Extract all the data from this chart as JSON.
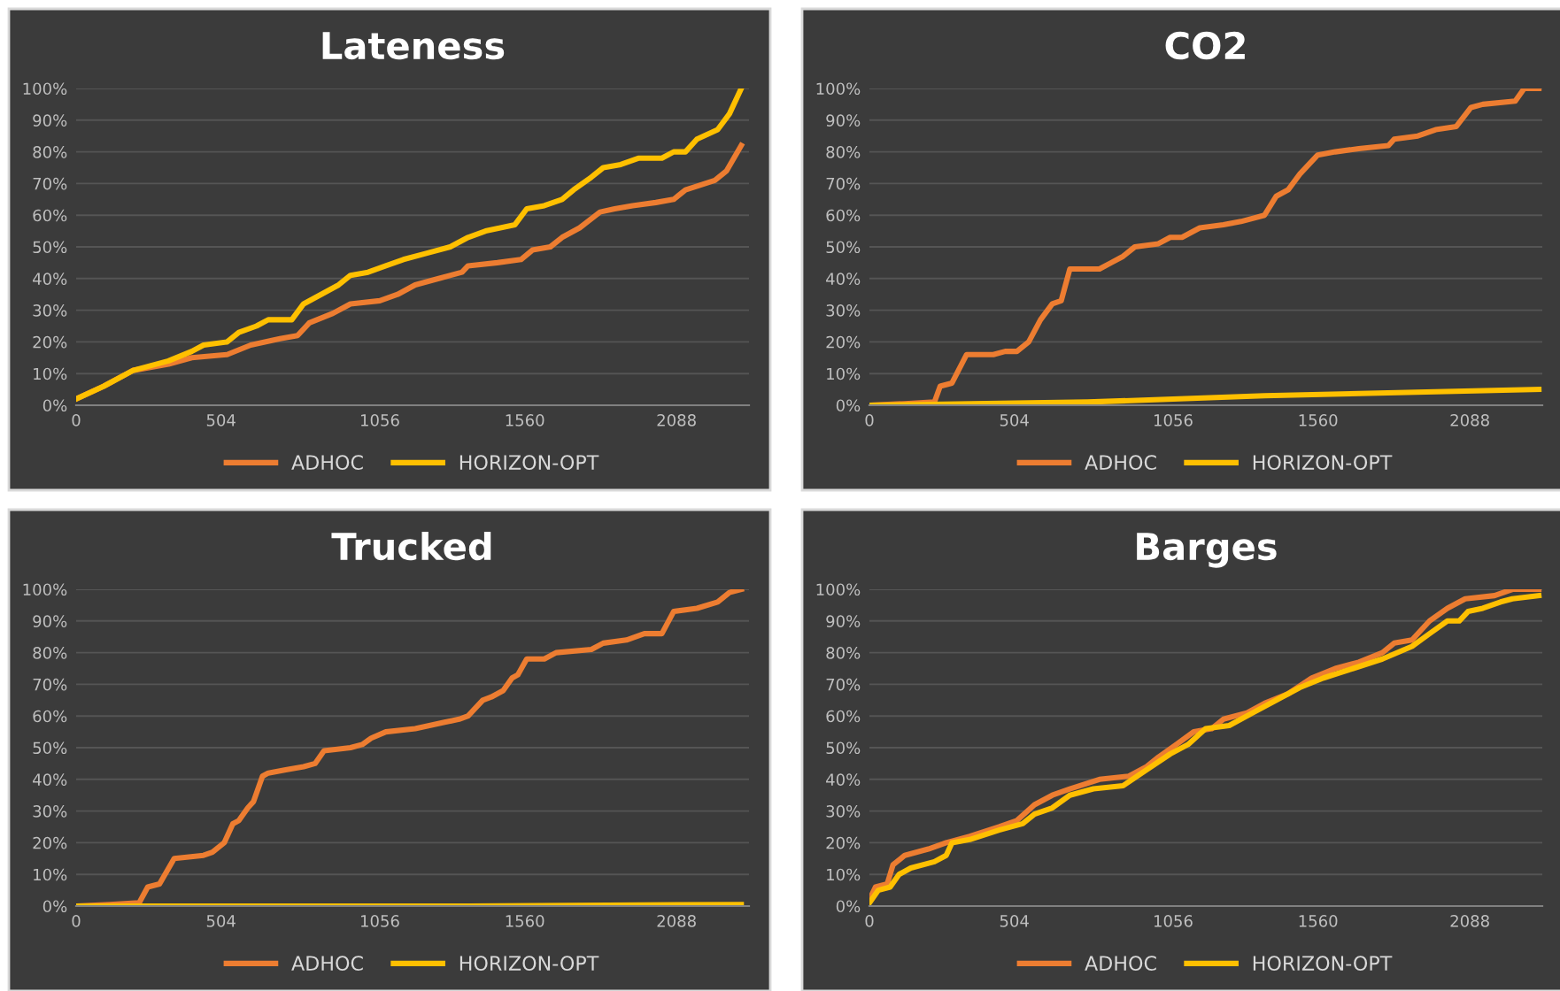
{
  "chart_data": [
    {
      "type": "line",
      "title": "Lateness",
      "xlim": [
        0,
        2340
      ],
      "ylim": [
        0,
        100
      ],
      "grid": "y",
      "legend": "bottom",
      "xticks": [
        0,
        504,
        1056,
        1560,
        2088
      ],
      "yticks": [
        {
          "value": 0,
          "label": "0%"
        },
        {
          "value": 10,
          "label": "10%"
        },
        {
          "value": 20,
          "label": "20%"
        },
        {
          "value": 30,
          "label": "30%"
        },
        {
          "value": 40,
          "label": "40%"
        },
        {
          "value": 50,
          "label": "50%"
        },
        {
          "value": 60,
          "label": "60%"
        },
        {
          "value": 70,
          "label": "70%"
        },
        {
          "value": 80,
          "label": "80%"
        },
        {
          "value": 90,
          "label": "90%"
        },
        {
          "value": 100,
          "label": "100%"
        }
      ],
      "series": [
        {
          "name": "ADHOC",
          "color": "#ed7d31",
          "x": [
            0,
            96,
            198,
            321,
            402,
            525,
            607,
            709,
            770,
            811,
            893,
            954,
            1056,
            1118,
            1179,
            1261,
            1342,
            1363,
            1465,
            1547,
            1587,
            1649,
            1690,
            1751,
            1822,
            1873,
            1935,
            2016,
            2078,
            2119,
            2221,
            2262,
            2313
          ],
          "values": [
            2,
            6,
            11,
            13,
            15,
            16,
            19,
            21,
            22,
            26,
            29,
            32,
            33,
            35,
            38,
            40,
            42,
            44,
            45,
            46,
            49,
            50,
            53,
            56,
            61,
            62,
            63,
            64,
            65,
            68,
            71,
            74,
            82
          ]
        },
        {
          "name": "HORIZON-OPT",
          "color": "#ffc000",
          "x": [
            0,
            96,
            198,
            321,
            402,
            443,
            525,
            566,
            627,
            668,
            750,
            791,
            852,
            913,
            954,
            1015,
            1077,
            1138,
            1220,
            1301,
            1363,
            1424,
            1526,
            1567,
            1628,
            1690,
            1730,
            1792,
            1833,
            1894,
            1955,
            2037,
            2078,
            2119,
            2159,
            2231,
            2272,
            2313
          ],
          "values": [
            2,
            6,
            11,
            14,
            17,
            19,
            20,
            23,
            25,
            27,
            27,
            32,
            35,
            38,
            41,
            42,
            44,
            46,
            48,
            50,
            53,
            55,
            57,
            62,
            63,
            65,
            68,
            72,
            75,
            76,
            78,
            78,
            80,
            80,
            84,
            87,
            92,
            100
          ]
        }
      ]
    },
    {
      "type": "line",
      "title": "CO2",
      "xlim": [
        0,
        2340
      ],
      "ylim": [
        0,
        100
      ],
      "grid": "y",
      "legend": "bottom",
      "xticks": [
        0,
        504,
        1056,
        1560,
        2088
      ],
      "yticks": [
        {
          "value": 0,
          "label": "0%"
        },
        {
          "value": 10,
          "label": "10%"
        },
        {
          "value": 20,
          "label": "20%"
        },
        {
          "value": 30,
          "label": "30%"
        },
        {
          "value": 40,
          "label": "40%"
        },
        {
          "value": 50,
          "label": "50%"
        },
        {
          "value": 60,
          "label": "60%"
        },
        {
          "value": 70,
          "label": "70%"
        },
        {
          "value": 80,
          "label": "80%"
        },
        {
          "value": 90,
          "label": "90%"
        },
        {
          "value": 100,
          "label": "100%"
        }
      ],
      "series": [
        {
          "name": "ADHOC",
          "color": "#ed7d31",
          "x": [
            0,
            123,
            226,
            246,
            287,
            338,
            431,
            472,
            513,
            554,
            595,
            636,
            667,
            697,
            759,
            800,
            841,
            882,
            923,
            1005,
            1046,
            1087,
            1149,
            1231,
            1292,
            1374,
            1415,
            1456,
            1497,
            1559,
            1620,
            1702,
            1805,
            1825,
            1907,
            1969,
            2041,
            2092,
            2133,
            2246,
            2277,
            2328
          ],
          "values": [
            0,
            0.5,
            1,
            6,
            7,
            16,
            16,
            17,
            17,
            20,
            27,
            32,
            33,
            43,
            43,
            43,
            45,
            47,
            50,
            51,
            53,
            53,
            56,
            57,
            58,
            60,
            66,
            68,
            73,
            79,
            80,
            81,
            82,
            84,
            85,
            87,
            88,
            94,
            95,
            96,
            100,
            100
          ]
        },
        {
          "name": "HORIZON-OPT",
          "color": "#ffc000",
          "x": [
            0,
            759,
            1374,
            2328
          ],
          "values": [
            0,
            1,
            3,
            5
          ]
        }
      ]
    },
    {
      "type": "line",
      "title": "Trucked",
      "xlim": [
        0,
        2340
      ],
      "ylim": [
        0,
        100
      ],
      "grid": "y",
      "legend": "bottom",
      "xticks": [
        0,
        504,
        1056,
        1560,
        2088
      ],
      "yticks": [
        {
          "value": 0,
          "label": "0%"
        },
        {
          "value": 10,
          "label": "10%"
        },
        {
          "value": 20,
          "label": "20%"
        },
        {
          "value": 30,
          "label": "30%"
        },
        {
          "value": 40,
          "label": "40%"
        },
        {
          "value": 50,
          "label": "50%"
        },
        {
          "value": 60,
          "label": "60%"
        },
        {
          "value": 70,
          "label": "70%"
        },
        {
          "value": 80,
          "label": "80%"
        },
        {
          "value": 90,
          "label": "90%"
        },
        {
          "value": 100,
          "label": "100%"
        }
      ],
      "series": [
        {
          "name": "ADHOC",
          "color": "#ed7d31",
          "x": [
            0,
            116,
            219,
            249,
            290,
            341,
            443,
            474,
            515,
            545,
            566,
            597,
            617,
            648,
            668,
            729,
            791,
            831,
            862,
            954,
            995,
            1026,
            1077,
            1179,
            1281,
            1332,
            1363,
            1414,
            1444,
            1485,
            1516,
            1536,
            1567,
            1628,
            1669,
            1792,
            1833,
            1914,
            1976,
            2037,
            2078,
            2159,
            2231,
            2272,
            2313
          ],
          "values": [
            0,
            0.5,
            1,
            6,
            7,
            15,
            16,
            17,
            20,
            26,
            27,
            31,
            33,
            41,
            42,
            43,
            44,
            45,
            49,
            50,
            51,
            53,
            55,
            56,
            58,
            59,
            60,
            65,
            66,
            68,
            72,
            73,
            78,
            78,
            80,
            81,
            83,
            84,
            86,
            86,
            93,
            94,
            96,
            99,
            100
          ]
        },
        {
          "name": "HORIZON-OPT",
          "color": "#ffc000",
          "x": [
            0,
            1363,
            2313
          ],
          "values": [
            0,
            0,
            0.5
          ]
        }
      ]
    },
    {
      "type": "line",
      "title": "Barges",
      "xlim": [
        0,
        2340
      ],
      "ylim": [
        0,
        100
      ],
      "grid": "y",
      "legend": "bottom",
      "xticks": [
        0,
        504,
        1056,
        1560,
        2088
      ],
      "yticks": [
        {
          "value": 0,
          "label": "0%"
        },
        {
          "value": 10,
          "label": "10%"
        },
        {
          "value": 20,
          "label": "20%"
        },
        {
          "value": 30,
          "label": "30%"
        },
        {
          "value": 40,
          "label": "40%"
        },
        {
          "value": 50,
          "label": "50%"
        },
        {
          "value": 60,
          "label": "60%"
        },
        {
          "value": 70,
          "label": "70%"
        },
        {
          "value": 80,
          "label": "80%"
        },
        {
          "value": 90,
          "label": "90%"
        },
        {
          "value": 100,
          "label": "100%"
        }
      ],
      "series": [
        {
          "name": "ADHOC",
          "color": "#ed7d31",
          "x": [
            0,
            21,
            62,
            82,
            123,
            205,
            267,
            349,
            451,
            513,
            574,
            636,
            697,
            800,
            902,
            964,
            1005,
            1067,
            1128,
            1190,
            1231,
            1313,
            1374,
            1456,
            1538,
            1620,
            1702,
            1784,
            1825,
            1887,
            1948,
            2010,
            2072,
            2174,
            2236,
            2328
          ],
          "values": [
            2,
            6,
            7,
            13,
            16,
            18,
            20,
            22,
            25,
            27,
            32,
            35,
            37,
            40,
            41,
            44,
            47,
            51,
            55,
            56,
            59,
            61,
            64,
            67,
            72,
            75,
            77,
            80,
            83,
            84,
            90,
            94,
            97,
            98,
            100,
            100
          ]
        },
        {
          "name": "HORIZON-OPT",
          "color": "#ffc000",
          "x": [
            0,
            31,
            72,
            103,
            144,
            226,
            267,
            287,
            349,
            451,
            533,
            574,
            636,
            697,
            779,
            882,
            964,
            1046,
            1108,
            1169,
            1251,
            1333,
            1415,
            1497,
            1579,
            1682,
            1784,
            1887,
            1948,
            2010,
            2051,
            2082,
            2133,
            2195,
            2236,
            2328
          ],
          "values": [
            1,
            5,
            6,
            10,
            12,
            14,
            16,
            20,
            21,
            24,
            26,
            29,
            31,
            35,
            37,
            38,
            43,
            48,
            51,
            56,
            57,
            61,
            65,
            69,
            72,
            75,
            78,
            82,
            86,
            90,
            90,
            93,
            94,
            96,
            97,
            98
          ]
        }
      ]
    }
  ]
}
